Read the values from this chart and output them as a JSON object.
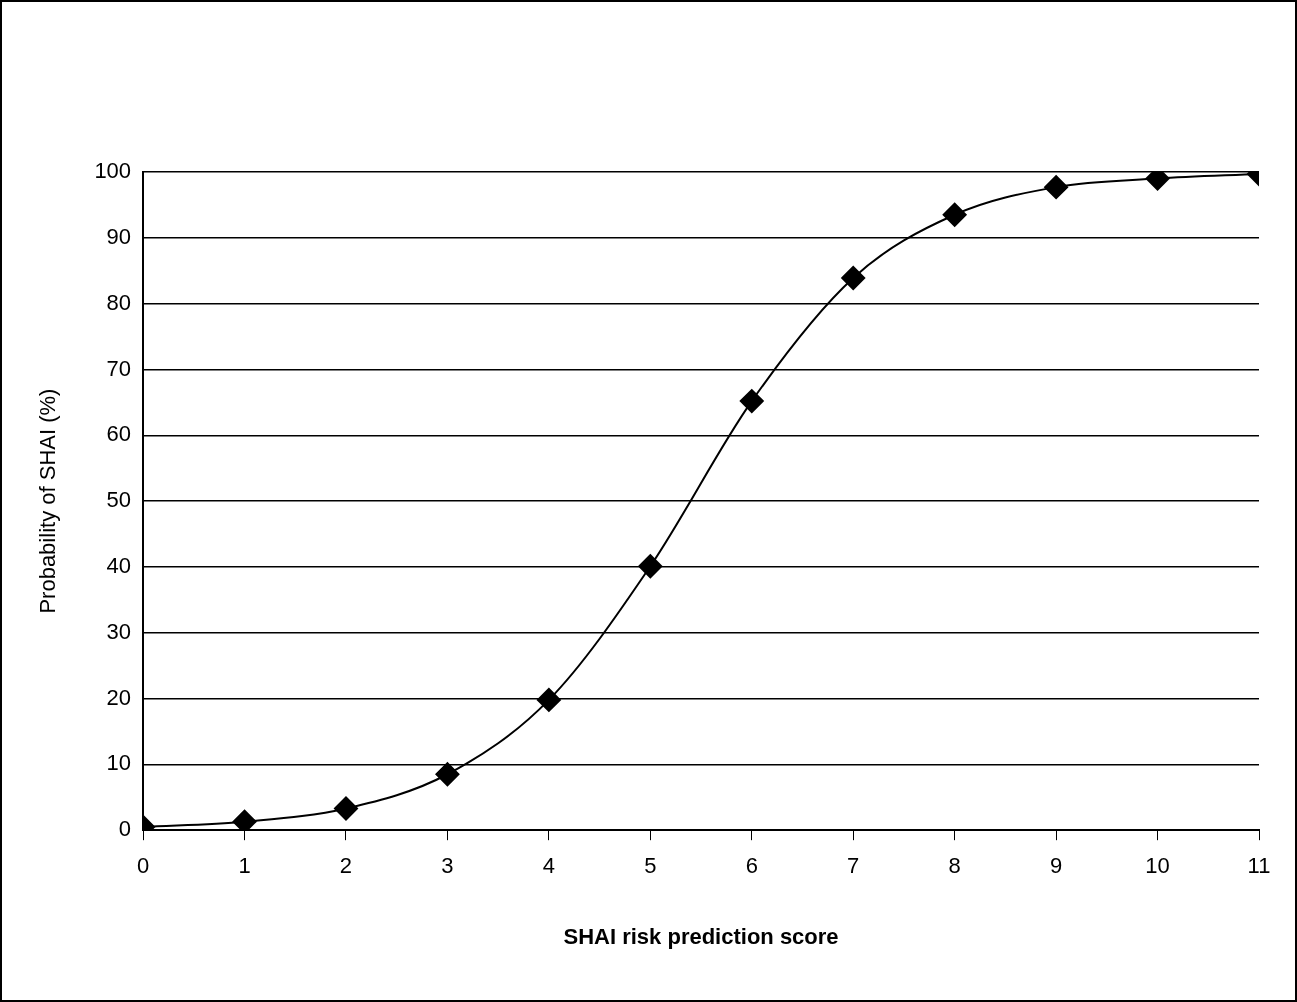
{
  "chart_data": {
    "type": "line",
    "xlabel": "SHAI risk prediction score",
    "ylabel": "Probability of SHAI (%)",
    "x": [
      0,
      1,
      2,
      3,
      4,
      5,
      6,
      7,
      8,
      9,
      10,
      11
    ],
    "series": [
      {
        "color": "#000000",
        "values": [
          0.5,
          1.3,
          3.3,
          8.5,
          19.8,
          40.1,
          65.2,
          83.9,
          93.5,
          97.7,
          99,
          99.7
        ]
      }
    ],
    "xlim": [
      0,
      11
    ],
    "xticks": [
      0,
      1,
      2,
      3,
      4,
      5,
      6,
      7,
      8,
      9,
      10,
      11
    ],
    "ylim": [
      0,
      100
    ],
    "yticks": [
      0,
      10,
      20,
      30,
      40,
      50,
      60,
      70,
      80,
      90,
      100
    ],
    "grid": "y",
    "marker": "diamond",
    "line_style": "solid"
  }
}
